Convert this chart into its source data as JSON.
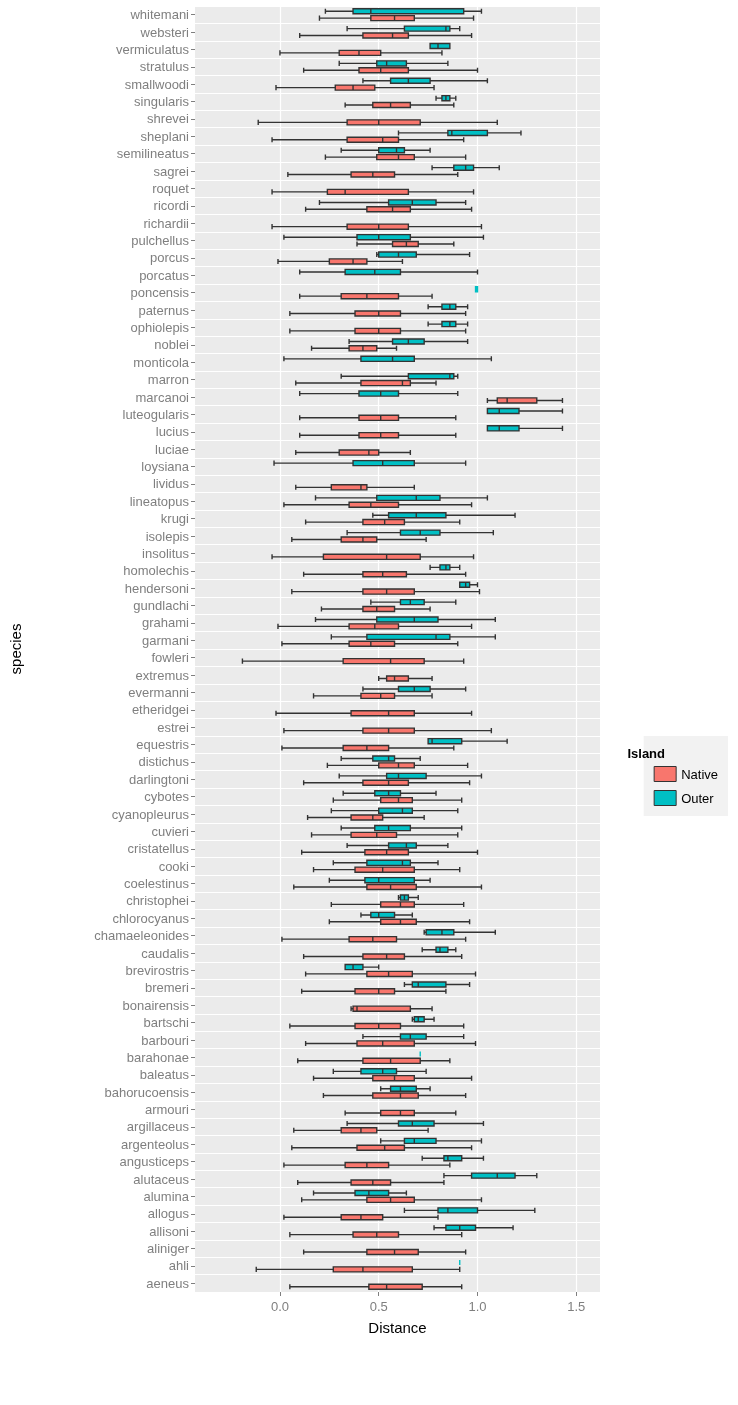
{
  "chart_data": {
    "type": "box",
    "orientation": "horizontal",
    "xlabel": "Distance",
    "ylabel": "species",
    "legend_title": "Island",
    "legend": "right",
    "grid": true,
    "xlim": [
      -0.43,
      1.62
    ],
    "xticks": [
      {
        "value": 0,
        "label": "0.0"
      },
      0.5,
      {
        "value": 1,
        "label": "1.0"
      },
      1.5
    ],
    "categories": [
      "whitemani",
      "websteri",
      "vermiculatus",
      "stratulus",
      "smallwoodi",
      "singularis",
      "shrevei",
      "sheplani",
      "semilineatus",
      "sagrei",
      "roquet",
      "ricordi",
      "richardii",
      "pulchellus",
      "porcus",
      "porcatus",
      "poncensis",
      "paternus",
      "ophiolepis",
      "noblei",
      "monticola",
      "marron",
      "marcanoi",
      "luteogularis",
      "lucius",
      "luciae",
      "loysiana",
      "lividus",
      "lineatopus",
      "krugi",
      "isolepis",
      "insolitus",
      "homolechis",
      "hendersoni",
      "gundlachi",
      "grahami",
      "garmani",
      "fowleri",
      "extremus",
      "evermanni",
      "etheridgei",
      "estrei",
      "equestris",
      "distichus",
      "darlingtoni",
      "cybotes",
      "cyanopleurus",
      "cuvieri",
      "cristatellus",
      "cooki",
      "coelestinus",
      "christophei",
      "chlorocyanus",
      "chamaeleonides",
      "caudalis",
      "brevirostris",
      "bremeri",
      "bonairensis",
      "bartschi",
      "barbouri",
      "barahonae",
      "baleatus",
      "bahorucoensis",
      "armouri",
      "argillaceus",
      "argenteolus",
      "angusticeps",
      "alutaceus",
      "alumina",
      "allogus",
      "allisoni",
      "aliniger",
      "ahli",
      "aeneus"
    ],
    "series": [
      {
        "name": "Native",
        "color": "#f8766d",
        "boxes": [
          {
            "low": 0.2,
            "q1": 0.46,
            "median": 0.58,
            "q3": 0.68,
            "high": 0.98
          },
          {
            "low": 0.1,
            "q1": 0.42,
            "median": 0.57,
            "q3": 0.65,
            "high": 0.97
          },
          {
            "low": 0.0,
            "q1": 0.3,
            "median": 0.4,
            "q3": 0.51,
            "high": 0.82
          },
          {
            "low": 0.12,
            "q1": 0.4,
            "median": 0.51,
            "q3": 0.65,
            "high": 1.0
          },
          {
            "low": -0.02,
            "q1": 0.28,
            "median": 0.37,
            "q3": 0.48,
            "high": 0.78
          },
          {
            "low": 0.33,
            "q1": 0.47,
            "median": 0.56,
            "q3": 0.66,
            "high": 0.88
          },
          {
            "low": -0.11,
            "q1": 0.34,
            "median": 0.5,
            "q3": 0.71,
            "high": 1.1
          },
          {
            "low": -0.04,
            "q1": 0.34,
            "median": 0.52,
            "q3": 0.6,
            "high": 0.93
          },
          {
            "low": 0.23,
            "q1": 0.49,
            "median": 0.6,
            "q3": 0.68,
            "high": 0.94
          },
          {
            "low": 0.04,
            "q1": 0.36,
            "median": 0.47,
            "q3": 0.58,
            "high": 0.9
          },
          {
            "low": -0.04,
            "q1": 0.24,
            "median": 0.33,
            "q3": 0.65,
            "high": 0.98
          },
          {
            "low": 0.13,
            "q1": 0.44,
            "median": 0.57,
            "q3": 0.66,
            "high": 0.97
          },
          {
            "low": -0.04,
            "q1": 0.34,
            "median": 0.5,
            "q3": 0.65,
            "high": 1.02
          },
          {
            "low": 0.39,
            "q1": 0.57,
            "median": 0.64,
            "q3": 0.7,
            "high": 0.88
          },
          {
            "low": -0.01,
            "q1": 0.25,
            "median": 0.37,
            "q3": 0.44,
            "high": 0.62
          },
          null,
          {
            "low": 0.1,
            "q1": 0.31,
            "median": 0.44,
            "q3": 0.6,
            "high": 0.77
          },
          {
            "low": 0.05,
            "q1": 0.38,
            "median": 0.5,
            "q3": 0.61,
            "high": 0.94
          },
          {
            "low": 0.05,
            "q1": 0.38,
            "median": 0.5,
            "q3": 0.61,
            "high": 0.94
          },
          {
            "low": 0.16,
            "q1": 0.35,
            "median": 0.42,
            "q3": 0.49,
            "high": 0.59
          },
          null,
          {
            "low": 0.08,
            "q1": 0.41,
            "median": 0.62,
            "q3": 0.66,
            "high": 0.79
          },
          {
            "low": 1.05,
            "q1": 1.1,
            "median": 1.15,
            "q3": 1.3,
            "high": 1.43
          },
          {
            "low": 0.1,
            "q1": 0.4,
            "median": 0.51,
            "q3": 0.6,
            "high": 0.89
          },
          {
            "low": 0.1,
            "q1": 0.4,
            "median": 0.51,
            "q3": 0.6,
            "high": 0.89
          },
          {
            "low": 0.08,
            "q1": 0.3,
            "median": 0.45,
            "q3": 0.5,
            "high": 0.66
          },
          null,
          {
            "low": 0.08,
            "q1": 0.26,
            "median": 0.41,
            "q3": 0.44,
            "high": 0.68
          },
          {
            "low": 0.02,
            "q1": 0.35,
            "median": 0.46,
            "q3": 0.6,
            "high": 0.97
          },
          {
            "low": 0.13,
            "q1": 0.42,
            "median": 0.53,
            "q3": 0.63,
            "high": 0.91
          },
          {
            "low": 0.06,
            "q1": 0.31,
            "median": 0.42,
            "q3": 0.49,
            "high": 0.74
          },
          {
            "low": -0.04,
            "q1": 0.22,
            "median": 0.54,
            "q3": 0.71,
            "high": 0.98
          },
          {
            "low": 0.12,
            "q1": 0.42,
            "median": 0.52,
            "q3": 0.64,
            "high": 0.94
          },
          {
            "low": 0.06,
            "q1": 0.42,
            "median": 0.54,
            "q3": 0.68,
            "high": 1.01
          },
          {
            "low": 0.21,
            "q1": 0.42,
            "median": 0.49,
            "q3": 0.58,
            "high": 0.76
          },
          {
            "low": -0.01,
            "q1": 0.35,
            "median": 0.48,
            "q3": 0.6,
            "high": 0.97
          },
          {
            "low": 0.01,
            "q1": 0.35,
            "median": 0.46,
            "q3": 0.58,
            "high": 0.9
          },
          {
            "low": -0.19,
            "q1": 0.32,
            "median": 0.56,
            "q3": 0.73,
            "high": 0.93
          },
          {
            "low": 0.5,
            "q1": 0.54,
            "median": 0.58,
            "q3": 0.65,
            "high": 0.77
          },
          {
            "low": 0.17,
            "q1": 0.41,
            "median": 0.51,
            "q3": 0.58,
            "high": 0.77
          },
          {
            "low": -0.02,
            "q1": 0.36,
            "median": 0.55,
            "q3": 0.68,
            "high": 0.97
          },
          {
            "low": 0.02,
            "q1": 0.42,
            "median": 0.55,
            "q3": 0.68,
            "high": 1.07
          },
          {
            "low": 0.01,
            "q1": 0.32,
            "median": 0.44,
            "q3": 0.55,
            "high": 0.88
          },
          {
            "low": 0.24,
            "q1": 0.5,
            "median": 0.6,
            "q3": 0.68,
            "high": 0.95
          },
          {
            "low": 0.12,
            "q1": 0.42,
            "median": 0.55,
            "q3": 0.65,
            "high": 0.96
          },
          {
            "low": 0.27,
            "q1": 0.51,
            "median": 0.6,
            "q3": 0.67,
            "high": 0.92
          },
          {
            "low": 0.14,
            "q1": 0.36,
            "median": 0.47,
            "q3": 0.52,
            "high": 0.73
          },
          {
            "low": 0.16,
            "q1": 0.36,
            "median": 0.49,
            "q3": 0.59,
            "high": 0.9
          },
          {
            "low": 0.11,
            "q1": 0.43,
            "median": 0.54,
            "q3": 0.65,
            "high": 1.0
          },
          {
            "low": 0.17,
            "q1": 0.38,
            "median": 0.52,
            "q3": 0.68,
            "high": 0.91
          },
          {
            "low": 0.07,
            "q1": 0.44,
            "median": 0.56,
            "q3": 0.69,
            "high": 1.02
          },
          {
            "low": 0.26,
            "q1": 0.51,
            "median": 0.61,
            "q3": 0.68,
            "high": 0.93
          },
          {
            "low": 0.25,
            "q1": 0.51,
            "median": 0.61,
            "q3": 0.69,
            "high": 0.96
          },
          {
            "low": 0.01,
            "q1": 0.35,
            "median": 0.47,
            "q3": 0.59,
            "high": 0.94
          },
          {
            "low": 0.12,
            "q1": 0.42,
            "median": 0.54,
            "q3": 0.63,
            "high": 0.92
          },
          {
            "low": 0.13,
            "q1": 0.44,
            "median": 0.55,
            "q3": 0.67,
            "high": 0.99
          },
          {
            "low": 0.11,
            "q1": 0.38,
            "median": 0.5,
            "q3": 0.58,
            "high": 0.84
          },
          {
            "low": 0.36,
            "q1": 0.37,
            "median": 0.39,
            "q3": 0.66,
            "high": 0.77
          },
          {
            "low": 0.05,
            "q1": 0.38,
            "median": 0.5,
            "q3": 0.61,
            "high": 0.93
          },
          {
            "low": 0.13,
            "q1": 0.39,
            "median": 0.52,
            "q3": 0.68,
            "high": 0.99
          },
          {
            "low": 0.09,
            "q1": 0.42,
            "median": 0.56,
            "q3": 0.71,
            "high": 0.86
          },
          {
            "low": 0.17,
            "q1": 0.47,
            "median": 0.58,
            "q3": 0.68,
            "high": 0.97
          },
          {
            "low": 0.22,
            "q1": 0.47,
            "median": 0.61,
            "q3": 0.7,
            "high": 0.94
          },
          {
            "low": 0.33,
            "q1": 0.51,
            "median": 0.61,
            "q3": 0.68,
            "high": 0.89
          },
          {
            "low": 0.07,
            "q1": 0.31,
            "median": 0.41,
            "q3": 0.49,
            "high": 0.75
          },
          {
            "low": 0.06,
            "q1": 0.39,
            "median": 0.53,
            "q3": 0.63,
            "high": 0.97
          },
          {
            "low": 0.02,
            "q1": 0.33,
            "median": 0.44,
            "q3": 0.55,
            "high": 0.86
          },
          {
            "low": 0.09,
            "q1": 0.36,
            "median": 0.47,
            "q3": 0.56,
            "high": 0.83
          },
          {
            "low": 0.11,
            "q1": 0.44,
            "median": 0.56,
            "q3": 0.68,
            "high": 1.02
          },
          {
            "low": 0.02,
            "q1": 0.31,
            "median": 0.41,
            "q3": 0.52,
            "high": 0.8
          },
          {
            "low": 0.05,
            "q1": 0.37,
            "median": 0.49,
            "q3": 0.6,
            "high": 0.92
          },
          {
            "low": 0.12,
            "q1": 0.44,
            "median": 0.58,
            "q3": 0.7,
            "high": 0.94
          },
          {
            "low": -0.12,
            "q1": 0.27,
            "median": 0.42,
            "q3": 0.67,
            "high": 0.91
          },
          {
            "low": 0.05,
            "q1": 0.45,
            "median": 0.54,
            "q3": 0.72,
            "high": 0.92
          }
        ]
      },
      {
        "name": "Outer",
        "color": "#00bfc4",
        "boxes": [
          {
            "low": 0.23,
            "q1": 0.37,
            "median": 0.46,
            "q3": 0.93,
            "high": 1.02
          },
          {
            "low": 0.34,
            "q1": 0.63,
            "median": 0.84,
            "q3": 0.86,
            "high": 0.91
          },
          {
            "low": 0.76,
            "q1": 0.76,
            "median": 0.8,
            "q3": 0.86,
            "high": 0.86
          },
          {
            "low": 0.3,
            "q1": 0.49,
            "median": 0.54,
            "q3": 0.64,
            "high": 0.85
          },
          {
            "low": 0.42,
            "q1": 0.56,
            "median": 0.65,
            "q3": 0.76,
            "high": 1.05
          },
          {
            "low": 0.79,
            "q1": 0.82,
            "median": 0.84,
            "q3": 0.86,
            "high": 0.89
          },
          null,
          {
            "low": 0.6,
            "q1": 0.85,
            "median": 0.87,
            "q3": 1.05,
            "high": 1.22
          },
          {
            "low": 0.31,
            "q1": 0.5,
            "median": 0.59,
            "q3": 0.63,
            "high": 0.76
          },
          {
            "low": 0.77,
            "q1": 0.88,
            "median": 0.94,
            "q3": 0.98,
            "high": 1.11
          },
          null,
          {
            "low": 0.2,
            "q1": 0.55,
            "median": 0.67,
            "q3": 0.79,
            "high": 0.94
          },
          null,
          {
            "low": 0.02,
            "q1": 0.39,
            "median": 0.5,
            "q3": 0.66,
            "high": 1.03
          },
          {
            "low": 0.49,
            "q1": 0.5,
            "median": 0.6,
            "q3": 0.69,
            "high": 0.96
          },
          {
            "low": 0.1,
            "q1": 0.33,
            "median": 0.48,
            "q3": 0.61,
            "high": 1.0
          },
          {
            "low": 0.99,
            "q1": 0.99,
            "median": 0.99,
            "q3": 1.0,
            "high": 1.0
          },
          {
            "low": 0.75,
            "q1": 0.82,
            "median": 0.86,
            "q3": 0.89,
            "high": 0.95
          },
          {
            "low": 0.75,
            "q1": 0.82,
            "median": 0.86,
            "q3": 0.89,
            "high": 0.95
          },
          {
            "low": 0.35,
            "q1": 0.57,
            "median": 0.65,
            "q3": 0.73,
            "high": 0.95
          },
          {
            "low": 0.02,
            "q1": 0.41,
            "median": 0.57,
            "q3": 0.68,
            "high": 1.07
          },
          {
            "low": 0.31,
            "q1": 0.65,
            "median": 0.86,
            "q3": 0.88,
            "high": 0.9
          },
          {
            "low": 0.1,
            "q1": 0.4,
            "median": 0.51,
            "q3": 0.6,
            "high": 0.9
          },
          {
            "low": 1.05,
            "q1": 1.05,
            "median": 1.11,
            "q3": 1.21,
            "high": 1.43
          },
          {
            "low": 1.05,
            "q1": 1.05,
            "median": 1.11,
            "q3": 1.21,
            "high": 1.43
          },
          null,
          {
            "low": -0.03,
            "q1": 0.37,
            "median": 0.52,
            "q3": 0.68,
            "high": 0.94
          },
          null,
          {
            "low": 0.18,
            "q1": 0.49,
            "median": 0.69,
            "q3": 0.81,
            "high": 1.05
          },
          {
            "low": 0.47,
            "q1": 0.55,
            "median": 0.69,
            "q3": 0.84,
            "high": 1.19
          },
          {
            "low": 0.34,
            "q1": 0.61,
            "median": 0.71,
            "q3": 0.81,
            "high": 1.08
          },
          null,
          {
            "low": 0.76,
            "q1": 0.81,
            "median": 0.84,
            "q3": 0.86,
            "high": 0.91
          },
          {
            "low": 0.91,
            "q1": 0.91,
            "median": 0.94,
            "q3": 0.96,
            "high": 1.0
          },
          {
            "low": 0.46,
            "q1": 0.61,
            "median": 0.66,
            "q3": 0.73,
            "high": 0.89
          },
          {
            "low": 0.18,
            "q1": 0.49,
            "median": 0.68,
            "q3": 0.8,
            "high": 1.09
          },
          {
            "low": 0.26,
            "q1": 0.44,
            "median": 0.79,
            "q3": 0.86,
            "high": 1.09
          },
          null,
          null,
          {
            "low": 0.42,
            "q1": 0.6,
            "median": 0.68,
            "q3": 0.76,
            "high": 0.94
          },
          null,
          null,
          {
            "low": 0.75,
            "q1": 0.75,
            "median": 0.77,
            "q3": 0.92,
            "high": 1.15
          },
          {
            "low": 0.31,
            "q1": 0.47,
            "median": 0.55,
            "q3": 0.58,
            "high": 0.71
          },
          {
            "low": 0.3,
            "q1": 0.54,
            "median": 0.6,
            "q3": 0.74,
            "high": 1.02
          },
          {
            "low": 0.32,
            "q1": 0.48,
            "median": 0.55,
            "q3": 0.61,
            "high": 0.79
          },
          {
            "low": 0.26,
            "q1": 0.5,
            "median": 0.62,
            "q3": 0.67,
            "high": 0.9
          },
          {
            "low": 0.31,
            "q1": 0.48,
            "median": 0.55,
            "q3": 0.66,
            "high": 0.92
          },
          {
            "low": 0.34,
            "q1": 0.55,
            "median": 0.64,
            "q3": 0.69,
            "high": 0.85
          },
          {
            "low": 0.27,
            "q1": 0.44,
            "median": 0.62,
            "q3": 0.66,
            "high": 0.8
          },
          {
            "low": 0.25,
            "q1": 0.43,
            "median": 0.5,
            "q3": 0.68,
            "high": 0.76
          },
          {
            "low": 0.6,
            "q1": 0.61,
            "median": 0.63,
            "q3": 0.65,
            "high": 0.7
          },
          {
            "low": 0.41,
            "q1": 0.46,
            "median": 0.5,
            "q3": 0.58,
            "high": 0.67
          },
          {
            "low": 0.73,
            "q1": 0.74,
            "median": 0.82,
            "q3": 0.88,
            "high": 1.09
          },
          {
            "low": 0.72,
            "q1": 0.79,
            "median": 0.81,
            "q3": 0.85,
            "high": 0.89
          },
          {
            "low": 0.33,
            "q1": 0.33,
            "median": 0.37,
            "q3": 0.42,
            "high": 0.5
          },
          {
            "low": 0.63,
            "q1": 0.67,
            "median": 0.7,
            "q3": 0.84,
            "high": 0.96
          },
          null,
          {
            "low": 0.67,
            "q1": 0.68,
            "median": 0.7,
            "q3": 0.73,
            "high": 0.78
          },
          {
            "low": 0.42,
            "q1": 0.61,
            "median": 0.66,
            "q3": 0.74,
            "high": 0.93
          },
          {
            "low": 0.71,
            "q1": 0.71,
            "median": 0.71,
            "q3": 0.71,
            "high": 0.71
          },
          {
            "low": 0.27,
            "q1": 0.41,
            "median": 0.52,
            "q3": 0.59,
            "high": 0.74
          },
          {
            "low": 0.51,
            "q1": 0.56,
            "median": 0.61,
            "q3": 0.69,
            "high": 0.76
          },
          null,
          {
            "low": 0.34,
            "q1": 0.6,
            "median": 0.67,
            "q3": 0.78,
            "high": 1.03
          },
          {
            "low": 0.51,
            "q1": 0.63,
            "median": 0.68,
            "q3": 0.79,
            "high": 1.02
          },
          {
            "low": 0.72,
            "q1": 0.83,
            "median": 0.85,
            "q3": 0.92,
            "high": 1.03
          },
          {
            "low": 0.83,
            "q1": 0.97,
            "median": 1.1,
            "q3": 1.19,
            "high": 1.3
          },
          {
            "low": 0.17,
            "q1": 0.38,
            "median": 0.45,
            "q3": 0.55,
            "high": 0.64
          },
          {
            "low": 0.63,
            "q1": 0.8,
            "median": 0.85,
            "q3": 1.0,
            "high": 1.29
          },
          {
            "low": 0.78,
            "q1": 0.84,
            "median": 0.91,
            "q3": 0.99,
            "high": 1.18
          },
          null,
          {
            "low": 0.91,
            "q1": 0.91,
            "median": 0.91,
            "q3": 0.91,
            "high": 0.91
          },
          null
        ]
      }
    ]
  }
}
